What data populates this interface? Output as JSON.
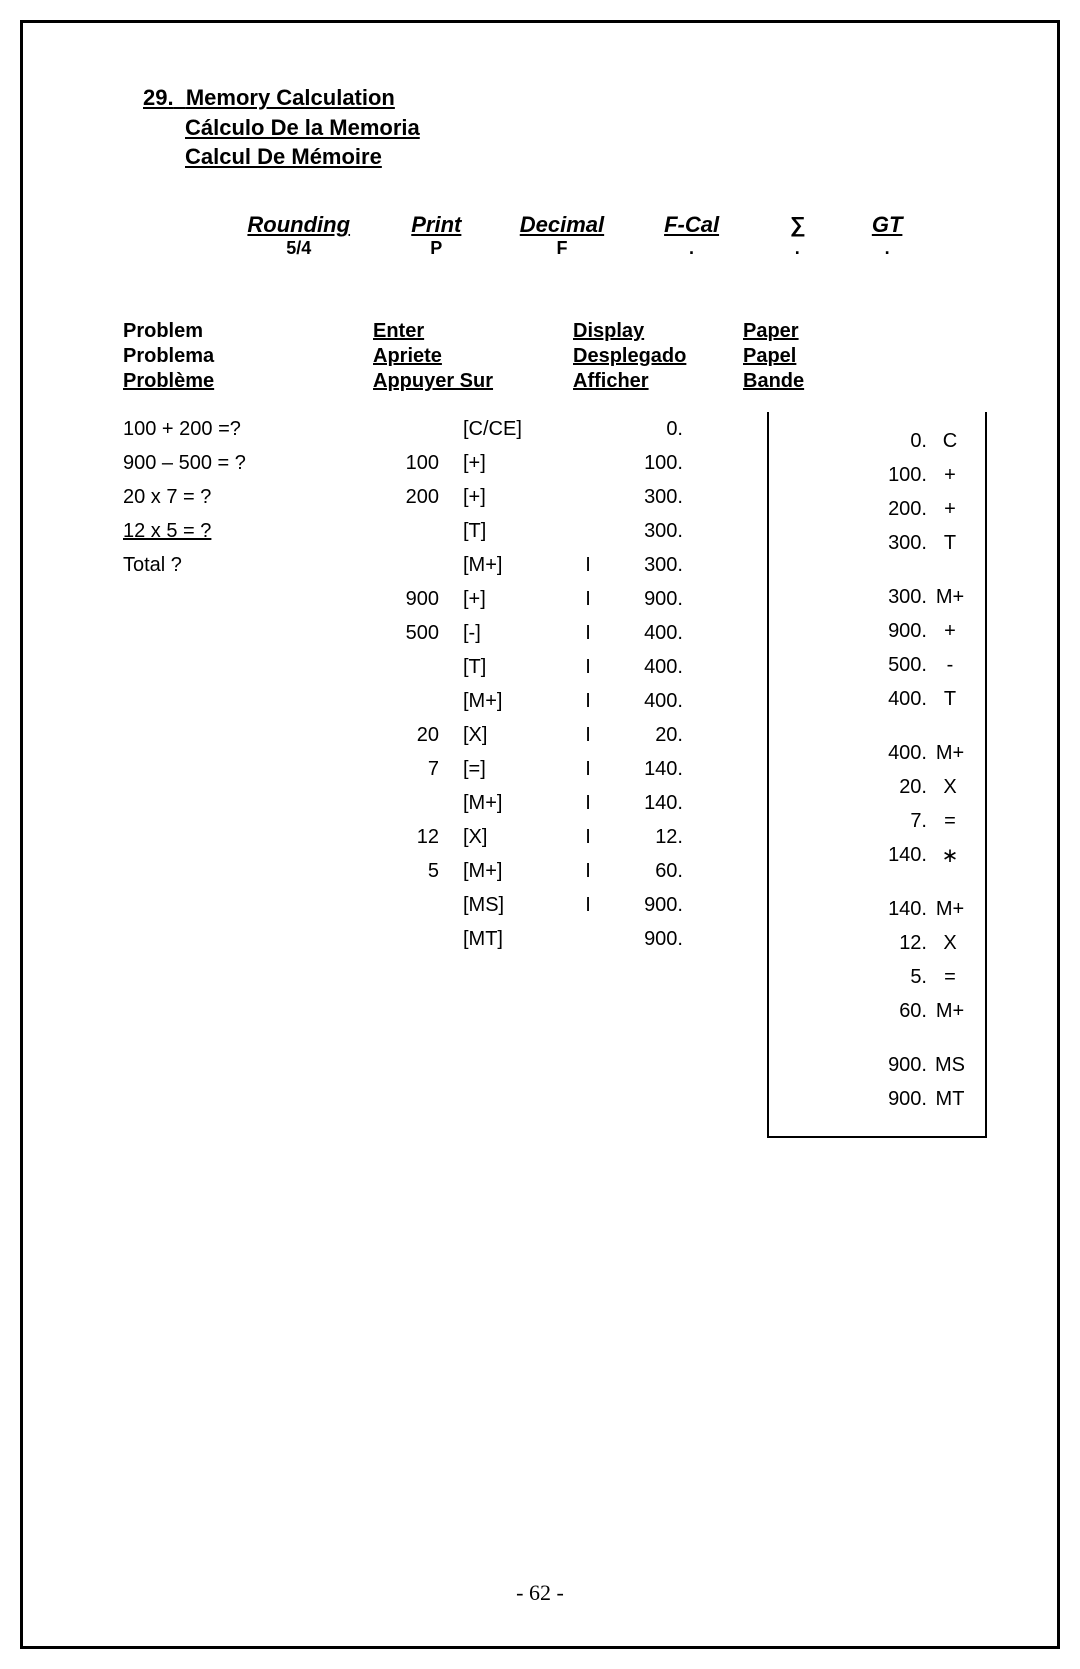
{
  "heading": {
    "num": "29.",
    "title_en": "Memory Calculation",
    "title_es": "Cálculo De la Memoria",
    "title_fr": "Calcul De Mémoire"
  },
  "settings": {
    "rounding": {
      "label": "Rounding",
      "value": "5/4"
    },
    "print": {
      "label": "Print",
      "value": "P"
    },
    "decimal": {
      "label": "Decimal",
      "value": "F"
    },
    "fcal": {
      "label": "F-Cal",
      "value": "."
    },
    "sigma": {
      "label": "∑",
      "value": "."
    },
    "gt": {
      "label": "GT",
      "value": "."
    }
  },
  "col_headers": {
    "problem": {
      "en": "Problem",
      "es": "Problema",
      "fr": "Problème"
    },
    "enter": {
      "en": "Enter",
      "es": "Apriete",
      "fr": "Appuyer Sur"
    },
    "display": {
      "en": "Display",
      "es": "Desplegado",
      "fr": "Afficher"
    },
    "paper": {
      "en": "Paper",
      "es": "Papel",
      "fr": "Bande"
    }
  },
  "problems": [
    "100 + 200 =?",
    "900 – 500 = ?",
    "20 x 7  = ?",
    "12 x 5  = ?",
    "Total      ?"
  ],
  "rows": [
    {
      "enter_num": "",
      "key": "[C/CE]",
      "ind": "",
      "disp": "0."
    },
    {
      "enter_num": "100",
      "key": "[+]",
      "ind": "",
      "disp": "100."
    },
    {
      "enter_num": "200",
      "key": "[+]",
      "ind": "",
      "disp": "300."
    },
    {
      "enter_num": "",
      "key": "[T]",
      "ind": "",
      "disp": "300."
    },
    {
      "enter_num": "",
      "key": "[M+]",
      "ind": "I",
      "disp": "300."
    },
    {
      "enter_num": "900",
      "key": "[+]",
      "ind": "I",
      "disp": "900."
    },
    {
      "enter_num": "500",
      "key": "[-]",
      "ind": "I",
      "disp": "400."
    },
    {
      "enter_num": "",
      "key": "[T]",
      "ind": "I",
      "disp": "400."
    },
    {
      "enter_num": "",
      "key": "[M+]",
      "ind": "I",
      "disp": "400."
    },
    {
      "enter_num": "20",
      "key": "[X]",
      "ind": "I",
      "disp": "20."
    },
    {
      "enter_num": "7",
      "key": "[=]",
      "ind": "I",
      "disp": "140."
    },
    {
      "enter_num": "",
      "key": "[M+]",
      "ind": "I",
      "disp": "140."
    },
    {
      "enter_num": "12",
      "key": "[X]",
      "ind": "I",
      "disp": "12."
    },
    {
      "enter_num": "5",
      "key": "[M+]",
      "ind": "I",
      "disp": "60."
    },
    {
      "enter_num": "",
      "key": "[MS]",
      "ind": "I",
      "disp": "900."
    },
    {
      "enter_num": "",
      "key": "[MT]",
      "ind": "",
      "disp": "900."
    }
  ],
  "paper": [
    {
      "val": "0.",
      "sym": "C"
    },
    {
      "val": "100.",
      "sym": "+"
    },
    {
      "val": "200.",
      "sym": "+"
    },
    {
      "val": "300.",
      "sym": "T"
    },
    {
      "spacer": true
    },
    {
      "val": "300.",
      "sym": "M+"
    },
    {
      "val": "900.",
      "sym": "+"
    },
    {
      "val": "500.",
      "sym": "-"
    },
    {
      "val": "400.",
      "sym": "T"
    },
    {
      "spacer": true
    },
    {
      "val": "400.",
      "sym": "M+"
    },
    {
      "val": "20.",
      "sym": "X"
    },
    {
      "val": "7.",
      "sym": "="
    },
    {
      "val": "140.",
      "sym": "∗"
    },
    {
      "spacer": true
    },
    {
      "val": "140.",
      "sym": "M+"
    },
    {
      "val": "12.",
      "sym": "X"
    },
    {
      "val": "5.",
      "sym": "="
    },
    {
      "val": "60.",
      "sym": "M+"
    },
    {
      "spacer": true
    },
    {
      "val": "900.",
      "sym": "MS"
    },
    {
      "val": "900.",
      "sym": "MT"
    }
  ],
  "page_number": "- 62 -"
}
